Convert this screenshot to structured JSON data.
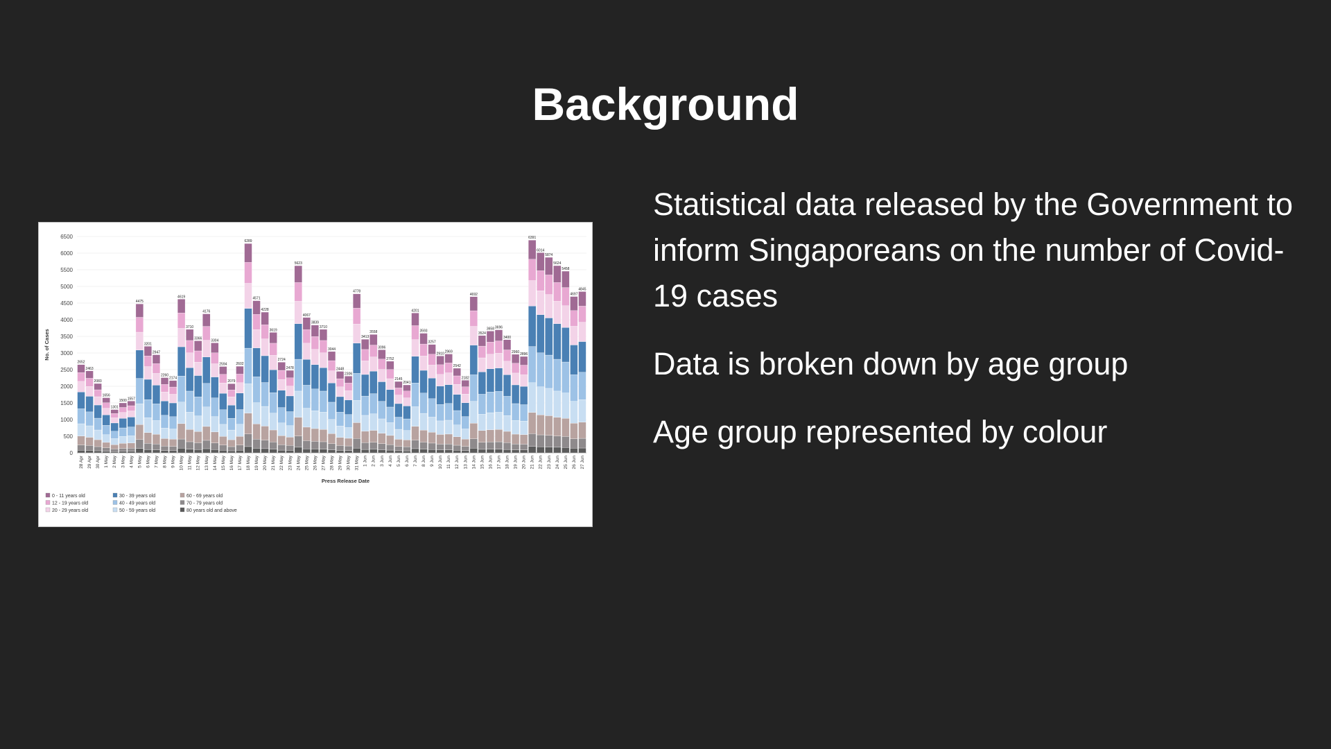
{
  "slide": {
    "title": "Background",
    "bullets": [
      "Statistical data released by the Government to inform Singaporeans on the number of Covid-19 cases",
      "Data is broken down by age group",
      "Age group represented by colour"
    ]
  },
  "chart_data": {
    "type": "bar",
    "stacked": true,
    "xlabel": "Press Release Date",
    "ylabel": "No. of Cases",
    "ylim": [
      0,
      6500
    ],
    "yticks": [
      0,
      500,
      1000,
      1500,
      2000,
      2500,
      3000,
      3500,
      4000,
      4500,
      5000,
      5500,
      6000,
      6500
    ],
    "grid": true,
    "legend_position": "bottom-left",
    "categories": [
      "28 Apr",
      "29 Apr",
      "30 Apr",
      "1 May",
      "2 May",
      "3 May",
      "4 May",
      "5 May",
      "6 May",
      "7 May",
      "8 May",
      "9 May",
      "10 May",
      "11 May",
      "12 May",
      "13 May",
      "14 May",
      "15 May",
      "16 May",
      "17 May",
      "18 May",
      "19 May",
      "20 May",
      "21 May",
      "22 May",
      "23 May",
      "24 May",
      "25 May",
      "26 May",
      "27 May",
      "28 May",
      "29 May",
      "30 May",
      "31 May",
      "1 Jun",
      "2 Jun",
      "3 Jun",
      "4 Jun",
      "5 Jun",
      "6 Jun",
      "7 Jun",
      "8 Jun",
      "9 Jun",
      "10 Jun",
      "11 Jun",
      "12 Jun",
      "13 Jun",
      "14 Jun",
      "15 Jun",
      "16 Jun",
      "17 Jun",
      "18 Jun",
      "19 Jun",
      "20 Jun",
      "21 Jun",
      "22 Jun",
      "23 Jun",
      "24 Jun",
      "25 Jun",
      "26 Jun",
      "27 Jun"
    ],
    "totals": [
      2652,
      2463,
      2083,
      1656,
      1301,
      1500,
      1557,
      4475,
      3201,
      2947,
      2260,
      2174,
      4619,
      3710,
      3366,
      4176,
      3304,
      2594,
      2079,
      2602,
      6289,
      4571,
      4228,
      3619,
      2724,
      2478,
      5623,
      4067,
      3839,
      3710,
      3044,
      2448,
      2306,
      4778,
      3413,
      3558,
      3096,
      2752,
      2145,
      2041,
      4201,
      3593,
      3257,
      2910,
      2969,
      2542,
      2182,
      4692,
      3524,
      3658,
      3696,
      3400,
      2960,
      2896,
      6391,
      6014,
      5874,
      5624,
      5458,
      4697,
      4845
    ],
    "series": [
      {
        "name": "0 - 11 years old",
        "color": "#a06a94",
        "share": 0.09
      },
      {
        "name": "12 - 19 years old",
        "color": "#e8a8d2",
        "share": 0.1
      },
      {
        "name": "20 - 29 years old",
        "color": "#f3d3e8",
        "share": 0.12
      },
      {
        "name": "30 - 39 years old",
        "color": "#4a80b4",
        "share": 0.19
      },
      {
        "name": "40 - 49 years old",
        "color": "#9dc2e6",
        "share": 0.17
      },
      {
        "name": "50 - 59 years old",
        "color": "#c8def2",
        "share": 0.14
      },
      {
        "name": "60 - 69 years old",
        "color": "#b8a3a0",
        "share": 0.1
      },
      {
        "name": "70 - 79 years old",
        "color": "#8e8a8c",
        "share": 0.06
      },
      {
        "name": "80 years old and above",
        "color": "#5a5a5a",
        "share": 0.03
      }
    ]
  }
}
